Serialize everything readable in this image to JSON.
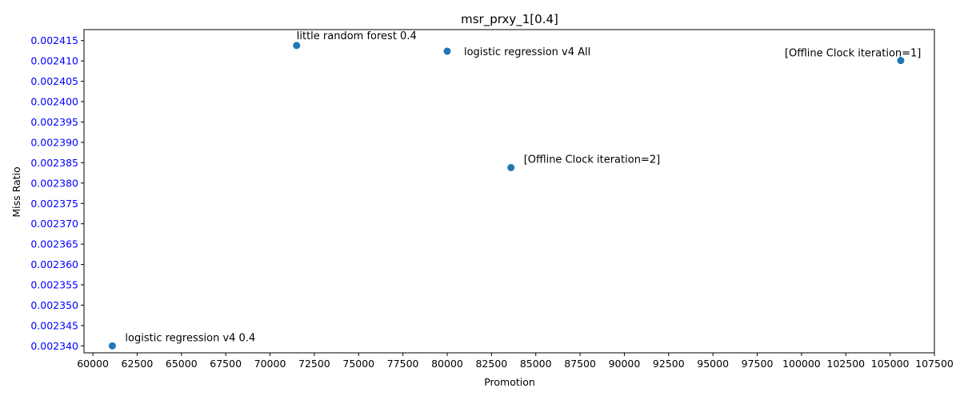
{
  "chart_data": {
    "type": "scatter",
    "title": "msr_prxy_1[0.4]",
    "xlabel": "Promotion",
    "ylabel": "Miss Ratio",
    "xlim": [
      59500,
      107500
    ],
    "ylim": [
      0.0023383,
      0.0024177
    ],
    "xticks": [
      60000,
      62500,
      65000,
      67500,
      70000,
      72500,
      75000,
      77500,
      80000,
      82500,
      85000,
      87500,
      90000,
      92500,
      95000,
      97500,
      100000,
      102500,
      105000,
      107500
    ],
    "xtick_labels": [
      "60000",
      "62500",
      "65000",
      "67500",
      "70000",
      "72500",
      "75000",
      "77500",
      "80000",
      "82500",
      "85000",
      "87500",
      "90000",
      "92500",
      "95000",
      "97500",
      "100000",
      "102500",
      "105000",
      "107500"
    ],
    "yticks": [
      0.00234,
      0.002345,
      0.00235,
      0.002355,
      0.00236,
      0.002365,
      0.00237,
      0.002375,
      0.00238,
      0.002385,
      0.00239,
      0.002395,
      0.0024,
      0.002405,
      0.00241,
      0.002415
    ],
    "ytick_labels": [
      "0.002340",
      "0.002345",
      "0.002350",
      "0.002355",
      "0.002360",
      "0.002365",
      "0.002370",
      "0.002375",
      "0.002380",
      "0.002385",
      "0.002390",
      "0.002395",
      "0.002400",
      "0.002405",
      "0.002410",
      "0.002415"
    ],
    "ytick_color": "#0000ff",
    "point_color": "#1f77b4",
    "grid": false,
    "points": [
      {
        "x": 61100,
        "y": 0.00234,
        "label": "logistic regression v4 0.4",
        "label_pos": "upper-right"
      },
      {
        "x": 71500,
        "y": 0.0024138,
        "label": "little random forest 0.4",
        "label_pos": "above"
      },
      {
        "x": 80000,
        "y": 0.0024124,
        "label": "logistic regression v4 All",
        "label_pos": "right"
      },
      {
        "x": 83600,
        "y": 0.0023838,
        "label": "[Offline Clock iteration=2]",
        "label_pos": "upper-right"
      },
      {
        "x": 105600,
        "y": 0.0024101,
        "label": "[Offline Clock iteration=1]",
        "label_pos": "left"
      }
    ]
  }
}
